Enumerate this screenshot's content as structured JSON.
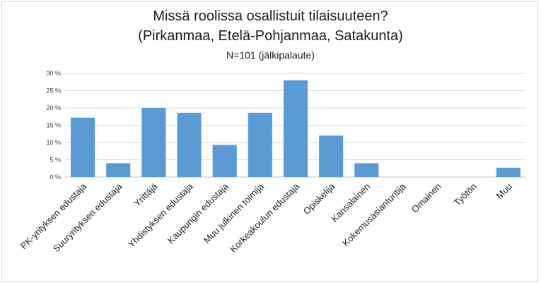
{
  "chart_data": {
    "type": "bar",
    "title": "Missä roolissa osallistuit tilaisuuteen?",
    "subtitle": "(Pirkanmaa, Etelä-Pohjanmaa, Satakunta)",
    "note": "N=101 (jälkipalaute)",
    "categories": [
      "PK-yrityksen edustaja",
      "Suuryrityksen edustaja",
      "Yrittäjä",
      "Yhdistyksen edustaja",
      "Kaupungin edustaja",
      "Muu julkinen toimija",
      "Korkeakoulun edustaja",
      "Opiskelija",
      "Kansalainen",
      "Kokemusasiantuntija",
      "Omainen",
      "Työtön",
      "Muu"
    ],
    "values": [
      17.2,
      4.0,
      20.0,
      18.6,
      9.3,
      18.6,
      28.0,
      12.0,
      4.0,
      0,
      0,
      0,
      2.7
    ],
    "ylim": [
      0,
      30
    ],
    "yticks": [
      0,
      5,
      10,
      15,
      20,
      25,
      30
    ],
    "ytick_labels": [
      "0 %",
      "5 %",
      "10 %",
      "15 %",
      "20 %",
      "25 %",
      "30 %"
    ],
    "grid": true,
    "bar_color": "#5b9bd5",
    "grid_color": "#d9d9d9",
    "xlabel": "",
    "ylabel": ""
  }
}
